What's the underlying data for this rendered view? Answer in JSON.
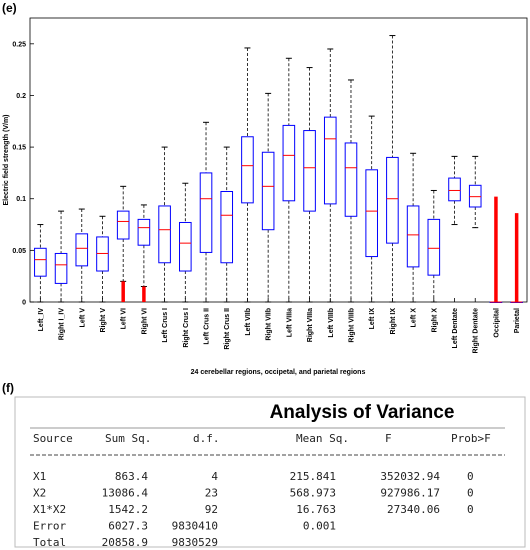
{
  "chart_data": {
    "type": "box",
    "panel_label": "(e)",
    "ylabel": "Electric field strength (V/m)",
    "xlabel": "24 cerebellar regions, occipetal, and parietal regions",
    "categories": [
      "Left_IV",
      "Right I_IV",
      "Left V",
      "Right V",
      "Left VI",
      "Right VI",
      "Left Crus I",
      "Right Crus I",
      "Left Crus II",
      "Right Crus II",
      "Left VIIb",
      "Right VIIb",
      "Left VIIIa",
      "Right VIIIa",
      "Left VIIIb",
      "Right VIIIb",
      "Left IX",
      "Right IX",
      "Left X",
      "Right X",
      "Left Dentate",
      "Right Dentate",
      "Occipital",
      "Parietal"
    ],
    "stats": [
      {
        "whislo": 0,
        "q1": 0.025,
        "med": 0.041,
        "q3": 0.052,
        "whishi": 0.075
      },
      {
        "whislo": 0,
        "q1": 0.018,
        "med": 0.036,
        "q3": 0.047,
        "whishi": 0.088
      },
      {
        "whislo": 0,
        "q1": 0.035,
        "med": 0.052,
        "q3": 0.066,
        "whishi": 0.09
      },
      {
        "whislo": 0,
        "q1": 0.03,
        "med": 0.047,
        "q3": 0.063,
        "whishi": 0.083
      },
      {
        "whislo": 0.02,
        "q1": 0.061,
        "med": 0.078,
        "q3": 0.088,
        "whishi": 0.112
      },
      {
        "whislo": 0.015,
        "q1": 0.055,
        "med": 0.072,
        "q3": 0.08,
        "whishi": 0.094
      },
      {
        "whislo": 0,
        "q1": 0.038,
        "med": 0.07,
        "q3": 0.093,
        "whishi": 0.15
      },
      {
        "whislo": 0,
        "q1": 0.03,
        "med": 0.057,
        "q3": 0.077,
        "whishi": 0.115
      },
      {
        "whislo": 0,
        "q1": 0.048,
        "med": 0.1,
        "q3": 0.125,
        "whishi": 0.174
      },
      {
        "whislo": 0,
        "q1": 0.038,
        "med": 0.084,
        "q3": 0.107,
        "whishi": 0.15
      },
      {
        "whislo": 0,
        "q1": 0.096,
        "med": 0.132,
        "q3": 0.16,
        "whishi": 0.246
      },
      {
        "whislo": 0,
        "q1": 0.07,
        "med": 0.112,
        "q3": 0.145,
        "whishi": 0.202
      },
      {
        "whislo": 0,
        "q1": 0.098,
        "med": 0.142,
        "q3": 0.171,
        "whishi": 0.236
      },
      {
        "whislo": 0,
        "q1": 0.088,
        "med": 0.13,
        "q3": 0.166,
        "whishi": 0.227
      },
      {
        "whislo": 0,
        "q1": 0.095,
        "med": 0.158,
        "q3": 0.179,
        "whishi": 0.245
      },
      {
        "whislo": 0,
        "q1": 0.083,
        "med": 0.13,
        "q3": 0.154,
        "whishi": 0.215
      },
      {
        "whislo": 0,
        "q1": 0.044,
        "med": 0.088,
        "q3": 0.128,
        "whishi": 0.18
      },
      {
        "whislo": 0,
        "q1": 0.057,
        "med": 0.1,
        "q3": 0.14,
        "whishi": 0.258
      },
      {
        "whislo": 0,
        "q1": 0.034,
        "med": 0.065,
        "q3": 0.093,
        "whishi": 0.144
      },
      {
        "whislo": 0,
        "q1": 0.026,
        "med": 0.052,
        "q3": 0.08,
        "whishi": 0.108
      },
      {
        "whislo": 0.075,
        "q1": 0.098,
        "med": 0.108,
        "q3": 0.12,
        "whishi": 0.141
      },
      {
        "whislo": 0.072,
        "q1": 0.092,
        "med": 0.102,
        "q3": 0.113,
        "whishi": 0.141
      },
      {
        "whislo": 0,
        "q1": 0,
        "med": 0,
        "q3": 0,
        "whishi": 0
      },
      {
        "whislo": 0,
        "q1": 0,
        "med": 0,
        "q3": 0,
        "whishi": 0
      }
    ],
    "outliers": [
      null,
      null,
      null,
      null,
      [
        0,
        0.02
      ],
      [
        0,
        0.015
      ],
      null,
      null,
      null,
      null,
      null,
      null,
      null,
      null,
      null,
      null,
      null,
      null,
      null,
      null,
      null,
      null,
      [
        0,
        0.102
      ],
      [
        0,
        0.086
      ]
    ],
    "box_color": "#0000ff",
    "median_color": "#ff0000",
    "outlier_color": "#ff0000",
    "ylim": [
      0,
      0.275
    ],
    "yticks": [
      0,
      0.05,
      0.1,
      0.15,
      0.2,
      0.25
    ]
  },
  "table": {
    "panel_label": "(f)",
    "title": "Analysis of Variance",
    "columns": [
      "Source",
      "Sum Sq.",
      "d.f.",
      "Mean Sq.",
      "F",
      "Prob>F"
    ],
    "rows": [
      [
        "X1",
        "863.4",
        "4",
        "215.841",
        "352032.94",
        "0"
      ],
      [
        "X2",
        "13086.4",
        "23",
        "568.973",
        "927986.17",
        "0"
      ],
      [
        "X1*X2",
        "1542.2",
        "92",
        "16.763",
        "27340.06",
        "0"
      ],
      [
        "Error",
        "6027.3",
        "9830410",
        "0.001"
      ],
      [
        "Total",
        "20858.9",
        "9830529"
      ]
    ]
  }
}
